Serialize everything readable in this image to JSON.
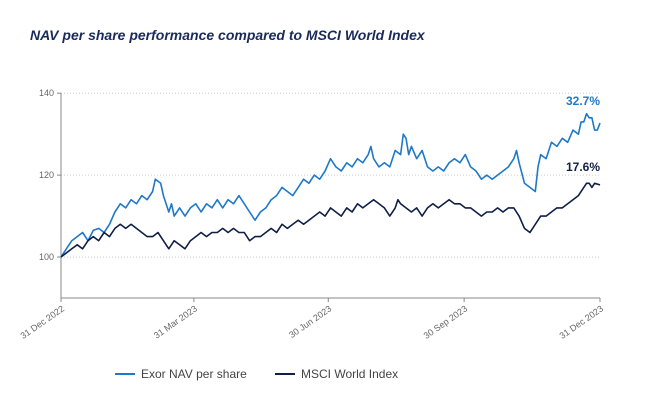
{
  "chart_data": {
    "type": "line",
    "title": "NAV per share performance compared to MSCI World Index",
    "xlabel": "",
    "ylabel": "",
    "ylim": [
      90,
      142
    ],
    "yticks": [
      100,
      120,
      140
    ],
    "xticks": [
      {
        "label": "31 Dec 2022",
        "t": 0
      },
      {
        "label": "31 Mar 2023",
        "t": 0.2466
      },
      {
        "label": "30 Jun 2023",
        "t": 0.4959
      },
      {
        "label": "30 Sep 2023",
        "t": 0.7479
      },
      {
        "label": "31 Dec 2023",
        "t": 1
      }
    ],
    "legend_position": "bottom",
    "colors": {
      "nav": "#1f78c8",
      "msci": "#0f1f45",
      "axis": "#8a8a8a",
      "grid": "#bfbfbf"
    },
    "series": [
      {
        "name": "Exor NAV per share",
        "key": "nav",
        "end_label": "32.7%",
        "points": [
          [
            0,
            100
          ],
          [
            0.01,
            102
          ],
          [
            0.02,
            104
          ],
          [
            0.03,
            105
          ],
          [
            0.04,
            106
          ],
          [
            0.05,
            104
          ],
          [
            0.06,
            106.5
          ],
          [
            0.07,
            107
          ],
          [
            0.08,
            106
          ],
          [
            0.09,
            108
          ],
          [
            0.1,
            111
          ],
          [
            0.11,
            113
          ],
          [
            0.12,
            112
          ],
          [
            0.13,
            114
          ],
          [
            0.14,
            113
          ],
          [
            0.15,
            115
          ],
          [
            0.16,
            114
          ],
          [
            0.17,
            116
          ],
          [
            0.175,
            119
          ],
          [
            0.185,
            118
          ],
          [
            0.19,
            115
          ],
          [
            0.2,
            111
          ],
          [
            0.205,
            113
          ],
          [
            0.21,
            110
          ],
          [
            0.22,
            112
          ],
          [
            0.23,
            110
          ],
          [
            0.24,
            112
          ],
          [
            0.25,
            113
          ],
          [
            0.26,
            111
          ],
          [
            0.27,
            113
          ],
          [
            0.28,
            112
          ],
          [
            0.29,
            114
          ],
          [
            0.3,
            112
          ],
          [
            0.31,
            114
          ],
          [
            0.32,
            113
          ],
          [
            0.33,
            115
          ],
          [
            0.34,
            113
          ],
          [
            0.35,
            111
          ],
          [
            0.36,
            109
          ],
          [
            0.37,
            111
          ],
          [
            0.38,
            112
          ],
          [
            0.39,
            114
          ],
          [
            0.4,
            115
          ],
          [
            0.41,
            117
          ],
          [
            0.42,
            116
          ],
          [
            0.43,
            115
          ],
          [
            0.44,
            117
          ],
          [
            0.45,
            119
          ],
          [
            0.46,
            118
          ],
          [
            0.47,
            120
          ],
          [
            0.48,
            119
          ],
          [
            0.49,
            121
          ],
          [
            0.5,
            124
          ],
          [
            0.51,
            122
          ],
          [
            0.52,
            121
          ],
          [
            0.53,
            123
          ],
          [
            0.54,
            122
          ],
          [
            0.55,
            124
          ],
          [
            0.56,
            123
          ],
          [
            0.57,
            125
          ],
          [
            0.575,
            127
          ],
          [
            0.58,
            124
          ],
          [
            0.59,
            122
          ],
          [
            0.6,
            123
          ],
          [
            0.61,
            122
          ],
          [
            0.62,
            126
          ],
          [
            0.63,
            125
          ],
          [
            0.635,
            130
          ],
          [
            0.64,
            129
          ],
          [
            0.645,
            125
          ],
          [
            0.65,
            127
          ],
          [
            0.66,
            124
          ],
          [
            0.67,
            126
          ],
          [
            0.68,
            122
          ],
          [
            0.69,
            121
          ],
          [
            0.7,
            122
          ],
          [
            0.71,
            121
          ],
          [
            0.72,
            123
          ],
          [
            0.73,
            124
          ],
          [
            0.74,
            123
          ],
          [
            0.75,
            125
          ],
          [
            0.76,
            122
          ],
          [
            0.77,
            121
          ],
          [
            0.78,
            119
          ],
          [
            0.79,
            120
          ],
          [
            0.8,
            119
          ],
          [
            0.81,
            120
          ],
          [
            0.82,
            121
          ],
          [
            0.83,
            122
          ],
          [
            0.84,
            124
          ],
          [
            0.845,
            126
          ],
          [
            0.85,
            123
          ],
          [
            0.86,
            118
          ],
          [
            0.87,
            117
          ],
          [
            0.88,
            116
          ],
          [
            0.885,
            122
          ],
          [
            0.89,
            125
          ],
          [
            0.9,
            124
          ],
          [
            0.91,
            128
          ],
          [
            0.92,
            127
          ],
          [
            0.93,
            129
          ],
          [
            0.94,
            128
          ],
          [
            0.95,
            131
          ],
          [
            0.96,
            130
          ],
          [
            0.965,
            133
          ],
          [
            0.97,
            133
          ],
          [
            0.975,
            135
          ],
          [
            0.98,
            134
          ],
          [
            0.985,
            134
          ],
          [
            0.99,
            131
          ],
          [
            0.995,
            131
          ],
          [
            1,
            132.7
          ]
        ]
      },
      {
        "name": "MSCI World Index",
        "key": "msci",
        "end_label": "17.6%",
        "points": [
          [
            0,
            100
          ],
          [
            0.01,
            101
          ],
          [
            0.02,
            102
          ],
          [
            0.03,
            103
          ],
          [
            0.04,
            102
          ],
          [
            0.05,
            104
          ],
          [
            0.06,
            105
          ],
          [
            0.07,
            104
          ],
          [
            0.08,
            106
          ],
          [
            0.09,
            105
          ],
          [
            0.1,
            107
          ],
          [
            0.11,
            108
          ],
          [
            0.12,
            107
          ],
          [
            0.13,
            108
          ],
          [
            0.14,
            107
          ],
          [
            0.15,
            106
          ],
          [
            0.16,
            105
          ],
          [
            0.17,
            105
          ],
          [
            0.18,
            106
          ],
          [
            0.19,
            104
          ],
          [
            0.2,
            102
          ],
          [
            0.21,
            104
          ],
          [
            0.22,
            103
          ],
          [
            0.23,
            102
          ],
          [
            0.24,
            104
          ],
          [
            0.25,
            105
          ],
          [
            0.26,
            106
          ],
          [
            0.27,
            105
          ],
          [
            0.28,
            106
          ],
          [
            0.29,
            106
          ],
          [
            0.3,
            107
          ],
          [
            0.31,
            106
          ],
          [
            0.32,
            107
          ],
          [
            0.33,
            106
          ],
          [
            0.34,
            106
          ],
          [
            0.35,
            104
          ],
          [
            0.36,
            105
          ],
          [
            0.37,
            105
          ],
          [
            0.38,
            106
          ],
          [
            0.39,
            107
          ],
          [
            0.4,
            106
          ],
          [
            0.41,
            108
          ],
          [
            0.42,
            107
          ],
          [
            0.43,
            108
          ],
          [
            0.44,
            109
          ],
          [
            0.45,
            108
          ],
          [
            0.46,
            109
          ],
          [
            0.47,
            110
          ],
          [
            0.48,
            111
          ],
          [
            0.49,
            110
          ],
          [
            0.5,
            112
          ],
          [
            0.51,
            111
          ],
          [
            0.52,
            110
          ],
          [
            0.53,
            112
          ],
          [
            0.54,
            111
          ],
          [
            0.55,
            113
          ],
          [
            0.56,
            112
          ],
          [
            0.57,
            113
          ],
          [
            0.58,
            114
          ],
          [
            0.59,
            113
          ],
          [
            0.6,
            112
          ],
          [
            0.61,
            110
          ],
          [
            0.62,
            112
          ],
          [
            0.625,
            114
          ],
          [
            0.63,
            113
          ],
          [
            0.64,
            112
          ],
          [
            0.65,
            111
          ],
          [
            0.66,
            112
          ],
          [
            0.67,
            110
          ],
          [
            0.68,
            112
          ],
          [
            0.69,
            113
          ],
          [
            0.7,
            112
          ],
          [
            0.71,
            113
          ],
          [
            0.72,
            114
          ],
          [
            0.73,
            113
          ],
          [
            0.74,
            113
          ],
          [
            0.75,
            112
          ],
          [
            0.76,
            112
          ],
          [
            0.77,
            111
          ],
          [
            0.78,
            110
          ],
          [
            0.79,
            111
          ],
          [
            0.8,
            111
          ],
          [
            0.81,
            112
          ],
          [
            0.82,
            111
          ],
          [
            0.83,
            112
          ],
          [
            0.84,
            112
          ],
          [
            0.85,
            110
          ],
          [
            0.86,
            107
          ],
          [
            0.87,
            106
          ],
          [
            0.875,
            107
          ],
          [
            0.88,
            108
          ],
          [
            0.89,
            110
          ],
          [
            0.9,
            110
          ],
          [
            0.91,
            111
          ],
          [
            0.92,
            112
          ],
          [
            0.93,
            112
          ],
          [
            0.94,
            113
          ],
          [
            0.95,
            114
          ],
          [
            0.96,
            115
          ],
          [
            0.97,
            117
          ],
          [
            0.975,
            118
          ],
          [
            0.98,
            118
          ],
          [
            0.985,
            117
          ],
          [
            0.99,
            118
          ],
          [
            1,
            117.6
          ]
        ]
      }
    ]
  }
}
